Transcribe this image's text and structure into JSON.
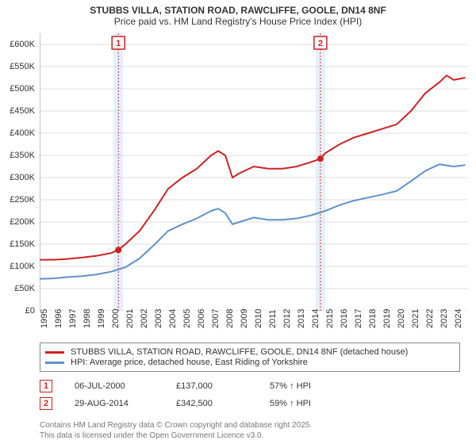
{
  "title_line1": "STUBBS VILLA, STATION ROAD, RAWCLIFFE, GOOLE, DN14 8NF",
  "title_line2": "Price paid vs. HM Land Registry's House Price Index (HPI)",
  "chart": {
    "type": "line",
    "background_color": "#ffffff",
    "grid_color": "#dddddd",
    "axis_color": "#888888",
    "x": {
      "min": 1995,
      "max": 2025,
      "ticks": [
        1995,
        1996,
        1997,
        1998,
        1999,
        2000,
        2001,
        2002,
        2003,
        2004,
        2005,
        2006,
        2007,
        2008,
        2009,
        2010,
        2011,
        2012,
        2013,
        2014,
        2015,
        2016,
        2017,
        2018,
        2019,
        2020,
        2021,
        2022,
        2023,
        2024
      ]
    },
    "y": {
      "min": 0,
      "max": 625000,
      "ticks": [
        0,
        50000,
        100000,
        150000,
        200000,
        250000,
        300000,
        350000,
        400000,
        450000,
        500000,
        550000,
        600000
      ],
      "tick_labels": [
        "£0",
        "£50K",
        "£100K",
        "£150K",
        "£200K",
        "£250K",
        "£300K",
        "£350K",
        "£400K",
        "£450K",
        "£500K",
        "£550K",
        "£600K"
      ]
    },
    "series": [
      {
        "key": "price",
        "label": "STUBBS VILLA, STATION ROAD, RAWCLIFFE, GOOLE, DN14 8NF (detached house)",
        "color": "#d02020",
        "width": 2.5,
        "points": [
          [
            1995,
            115000
          ],
          [
            1996,
            115000
          ],
          [
            1997,
            117000
          ],
          [
            1998,
            120000
          ],
          [
            1999,
            124000
          ],
          [
            2000,
            130000
          ],
          [
            2000.5,
            137000
          ],
          [
            2001,
            150000
          ],
          [
            2002,
            180000
          ],
          [
            2003,
            225000
          ],
          [
            2004,
            275000
          ],
          [
            2005,
            300000
          ],
          [
            2006,
            320000
          ],
          [
            2007,
            350000
          ],
          [
            2007.5,
            360000
          ],
          [
            2008,
            350000
          ],
          [
            2008.5,
            300000
          ],
          [
            2009,
            310000
          ],
          [
            2010,
            325000
          ],
          [
            2011,
            320000
          ],
          [
            2012,
            320000
          ],
          [
            2013,
            325000
          ],
          [
            2014,
            335000
          ],
          [
            2014.66,
            342500
          ],
          [
            2015,
            355000
          ],
          [
            2016,
            375000
          ],
          [
            2017,
            390000
          ],
          [
            2018,
            400000
          ],
          [
            2019,
            410000
          ],
          [
            2020,
            420000
          ],
          [
            2021,
            450000
          ],
          [
            2022,
            490000
          ],
          [
            2023,
            515000
          ],
          [
            2023.5,
            530000
          ],
          [
            2024,
            520000
          ],
          [
            2024.8,
            525000
          ]
        ]
      },
      {
        "key": "hpi",
        "label": "HPI: Average price, detached house, East Riding of Yorkshire",
        "color": "#6090c8",
        "width": 2,
        "points": [
          [
            1995,
            72000
          ],
          [
            1996,
            73000
          ],
          [
            1997,
            76000
          ],
          [
            1998,
            78000
          ],
          [
            1999,
            82000
          ],
          [
            2000,
            88000
          ],
          [
            2001,
            98000
          ],
          [
            2002,
            118000
          ],
          [
            2003,
            148000
          ],
          [
            2004,
            180000
          ],
          [
            2005,
            195000
          ],
          [
            2006,
            208000
          ],
          [
            2007,
            225000
          ],
          [
            2007.5,
            230000
          ],
          [
            2008,
            220000
          ],
          [
            2008.5,
            195000
          ],
          [
            2009,
            200000
          ],
          [
            2010,
            210000
          ],
          [
            2011,
            205000
          ],
          [
            2012,
            205000
          ],
          [
            2013,
            208000
          ],
          [
            2014,
            215000
          ],
          [
            2015,
            225000
          ],
          [
            2016,
            238000
          ],
          [
            2017,
            248000
          ],
          [
            2018,
            255000
          ],
          [
            2019,
            262000
          ],
          [
            2020,
            270000
          ],
          [
            2021,
            292000
          ],
          [
            2022,
            315000
          ],
          [
            2023,
            330000
          ],
          [
            2024,
            325000
          ],
          [
            2024.8,
            328000
          ]
        ]
      }
    ],
    "sales": [
      {
        "n": "1",
        "date_frac": 2000.51,
        "date": "06-JUL-2000",
        "price": "£137,000",
        "hpi": "57% ↑ HPI",
        "yval": 137000
      },
      {
        "n": "2",
        "date_frac": 2014.66,
        "date": "29-AUG-2014",
        "price": "£342,500",
        "hpi": "59% ↑ HPI",
        "yval": 342500
      }
    ],
    "sale_band_color": "#e6f0fa",
    "sale_dash_color": "#e03030",
    "badge_border": "#d02020",
    "badge_text": "#d02020"
  },
  "footer_line1": "Contains HM Land Registry data © Crown copyright and database right 2025.",
  "footer_line2": "This data is licensed under the Open Government Licence v3.0."
}
